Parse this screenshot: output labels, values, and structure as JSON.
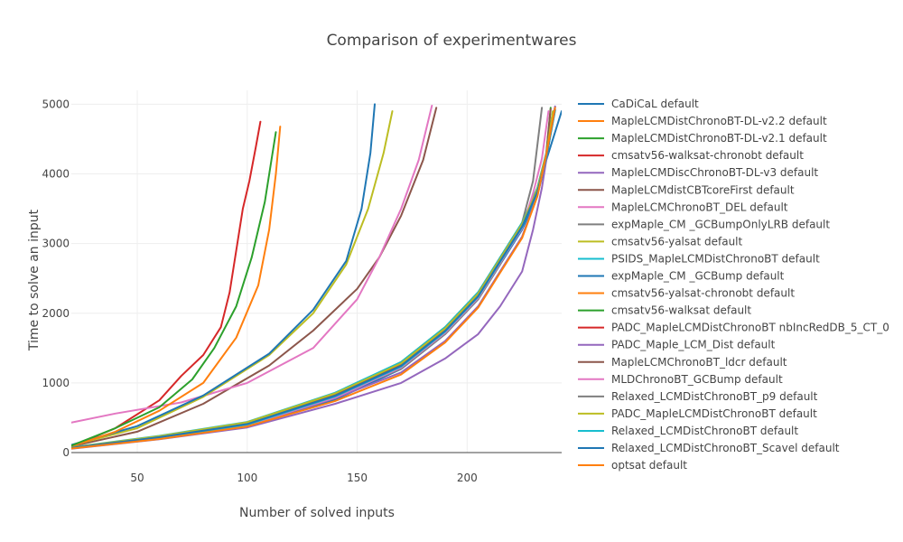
{
  "chart_data": {
    "type": "line",
    "title": "Comparison of experimentwares",
    "xlabel": "Number of solved inputs",
    "ylabel": "Time to solve an input",
    "xlim": [
      20,
      243
    ],
    "ylim": [
      0,
      5200
    ],
    "x_ticks": [
      50,
      100,
      150,
      200
    ],
    "y_ticks": [
      0,
      1000,
      2000,
      3000,
      4000,
      5000
    ],
    "grid": true,
    "legend_position": "right",
    "series": [
      {
        "name": "CaDiCaL default",
        "color": "#1f77b4",
        "x": [
          20,
          60,
          100,
          140,
          170,
          190,
          205,
          215,
          225,
          232,
          236,
          240,
          243
        ],
        "y": [
          60,
          200,
          380,
          760,
          1200,
          1700,
          2200,
          2700,
          3200,
          3700,
          4200,
          4600,
          4900
        ]
      },
      {
        "name": "MapleLCMDistChronoBT-DL-v2.2 default",
        "color": "#ff7f0e",
        "x": [
          20,
          60,
          100,
          140,
          170,
          190,
          205,
          215,
          225,
          232,
          236,
          238,
          240
        ],
        "y": [
          65,
          210,
          400,
          800,
          1250,
          1750,
          2250,
          2750,
          3250,
          3750,
          4250,
          4600,
          4960
        ]
      },
      {
        "name": "MapleLCMDistChronoBT-DL-v2.1 default",
        "color": "#2ca02c",
        "x": [
          20,
          60,
          100,
          140,
          170,
          190,
          205,
          215,
          225,
          232,
          236,
          238
        ],
        "y": [
          70,
          230,
          420,
          840,
          1300,
          1800,
          2300,
          2800,
          3300,
          3800,
          4300,
          4950
        ]
      },
      {
        "name": "cmsatv56-walksat-chronobt default",
        "color": "#d62728",
        "x": [
          20,
          40,
          60,
          70,
          80,
          88,
          92,
          95,
          98,
          101,
          104,
          106
        ],
        "y": [
          90,
          350,
          750,
          1100,
          1400,
          1800,
          2300,
          2900,
          3500,
          3900,
          4400,
          4750
        ]
      },
      {
        "name": "MapleLCMDiscChronoBT-DL-v3 default",
        "color": "#9467bd",
        "x": [
          20,
          60,
          100,
          140,
          170,
          190,
          205,
          215,
          225,
          232,
          236,
          240
        ],
        "y": [
          60,
          200,
          390,
          780,
          1150,
          1600,
          2100,
          2600,
          3100,
          3700,
          4300,
          4960
        ]
      },
      {
        "name": "MapleLCMdistCBTcoreFirst default",
        "color": "#8c564b",
        "x": [
          20,
          50,
          80,
          110,
          130,
          150,
          160,
          170,
          180,
          186
        ],
        "y": [
          90,
          300,
          700,
          1250,
          1750,
          2350,
          2800,
          3400,
          4200,
          4950
        ]
      },
      {
        "name": "MapleLCMChronoBT_DEL default",
        "color": "#e377c2",
        "x": [
          20,
          40,
          70,
          100,
          130,
          150,
          160,
          170,
          178,
          184
        ],
        "y": [
          430,
          560,
          720,
          1000,
          1500,
          2200,
          2800,
          3500,
          4200,
          4980
        ]
      },
      {
        "name": "expMaple_CM _GCBumpOnlyLRB default",
        "color": "#7f7f7f",
        "x": [
          20,
          60,
          100,
          140,
          170,
          190,
          205,
          215,
          225,
          230,
          234
        ],
        "y": [
          70,
          230,
          420,
          820,
          1200,
          1700,
          2200,
          2700,
          3300,
          3900,
          4950
        ]
      },
      {
        "name": "cmsatv56-yalsat default",
        "color": "#bcbd22",
        "x": [
          20,
          50,
          80,
          110,
          130,
          145,
          155,
          162,
          166
        ],
        "y": [
          100,
          350,
          800,
          1400,
          2000,
          2700,
          3500,
          4300,
          4900
        ]
      },
      {
        "name": "PSIDS_MapleLCMDistChronoBT default",
        "color": "#17becf",
        "x": [
          20,
          60,
          100,
          140,
          170,
          190,
          205,
          215,
          225,
          232,
          236,
          239
        ],
        "y": [
          75,
          240,
          440,
          860,
          1300,
          1800,
          2300,
          2800,
          3300,
          3800,
          4300,
          4900
        ]
      },
      {
        "name": "expMaple_CM _GCBump default",
        "color": "#1f77b4",
        "x": [
          20,
          50,
          80,
          110,
          130,
          145,
          152,
          156,
          158
        ],
        "y": [
          110,
          380,
          820,
          1420,
          2050,
          2750,
          3500,
          4300,
          5000
        ]
      },
      {
        "name": "cmsatv56-yalsat-chronobt default",
        "color": "#ff7f0e",
        "x": [
          20,
          40,
          60,
          80,
          95,
          105,
          110,
          113,
          115
        ],
        "y": [
          90,
          300,
          600,
          1000,
          1650,
          2400,
          3200,
          4000,
          4680
        ]
      },
      {
        "name": "cmsatv56-walksat default",
        "color": "#2ca02c",
        "x": [
          20,
          40,
          60,
          75,
          85,
          95,
          102,
          108,
          111,
          113
        ],
        "y": [
          100,
          350,
          650,
          1050,
          1500,
          2100,
          2800,
          3600,
          4200,
          4600
        ]
      },
      {
        "name": "PADC_MapleLCMDistChronoBT nbIncRedDB_5_CT_0",
        "color": "#d62728",
        "x": [
          20,
          60,
          100,
          140,
          170,
          190,
          205,
          215,
          225,
          232,
          236,
          239
        ],
        "y": [
          70,
          230,
          430,
          840,
          1260,
          1760,
          2260,
          2760,
          3260,
          3760,
          4260,
          4880
        ]
      },
      {
        "name": "PADC_Maple_LCM_Dist default",
        "color": "#9467bd",
        "x": [
          20,
          60,
          100,
          140,
          170,
          190,
          205,
          215,
          225,
          230,
          234,
          237,
          240
        ],
        "y": [
          55,
          190,
          360,
          700,
          1000,
          1350,
          1700,
          2100,
          2600,
          3200,
          3800,
          4400,
          4970
        ]
      },
      {
        "name": "MapleLCMChronoBT_ldcr default",
        "color": "#8c564b",
        "x": [
          20,
          60,
          100,
          140,
          170,
          190,
          205,
          215,
          225,
          232,
          236,
          238
        ],
        "y": [
          68,
          225,
          415,
          830,
          1280,
          1780,
          2280,
          2780,
          3280,
          3780,
          4280,
          4930
        ]
      },
      {
        "name": "MLDChronoBT_GCBump default",
        "color": "#e377c2",
        "x": [
          20,
          60,
          100,
          140,
          170,
          190,
          205,
          215,
          225,
          230,
          234,
          237
        ],
        "y": [
          62,
          205,
          395,
          790,
          1220,
          1720,
          2220,
          2720,
          3220,
          3720,
          4220,
          4900
        ]
      },
      {
        "name": "Relaxed_LCMDistChronoBT_p9 default",
        "color": "#7f7f7f",
        "x": [
          20,
          60,
          100,
          140,
          170,
          190,
          205,
          215,
          225,
          232,
          236,
          240
        ],
        "y": [
          66,
          215,
          405,
          810,
          1240,
          1740,
          2240,
          2740,
          3240,
          3740,
          4240,
          4920
        ]
      },
      {
        "name": "PADC_MapleLCMDistChronoBT default",
        "color": "#bcbd22",
        "x": [
          20,
          60,
          100,
          140,
          170,
          190,
          205,
          215,
          225,
          232,
          236,
          239
        ],
        "y": [
          72,
          235,
          435,
          850,
          1280,
          1780,
          2280,
          2780,
          3280,
          3780,
          4280,
          4900
        ]
      },
      {
        "name": "Relaxed_LCMDistChronoBT default",
        "color": "#17becf",
        "x": [
          20,
          60,
          100,
          140,
          170,
          190,
          205,
          215,
          225,
          232,
          236,
          240
        ],
        "y": [
          64,
          212,
          402,
          805,
          1235,
          1735,
          2235,
          2735,
          3235,
          3735,
          4235,
          4910
        ]
      },
      {
        "name": "Relaxed_LCMDistChronoBT_Scavel default",
        "color": "#1f77b4",
        "x": [
          20,
          60,
          100,
          140,
          170,
          190,
          205,
          215,
          225,
          232,
          236,
          240
        ],
        "y": [
          67,
          220,
          410,
          815,
          1245,
          1745,
          2245,
          2745,
          3245,
          3745,
          4245,
          4930
        ]
      },
      {
        "name": "optsat default",
        "color": "#ff7f0e",
        "x": [
          20,
          60,
          100,
          140,
          170,
          190,
          205,
          215,
          225,
          232,
          236,
          240
        ],
        "y": [
          58,
          195,
          375,
          740,
          1120,
          1580,
          2080,
          2580,
          3080,
          3680,
          4280,
          4950
        ]
      }
    ]
  }
}
